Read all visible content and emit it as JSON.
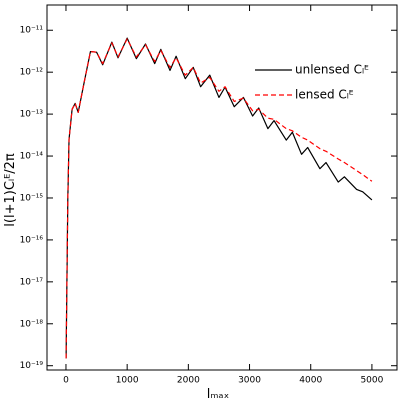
{
  "chart_data": {
    "type": "line",
    "xlabel": "lₘₐₓ",
    "ylabel": "l(l+1)Cₗᴱ/2π",
    "log_y": true,
    "legend": "upper right",
    "x": [
      2,
      30,
      50,
      100,
      150,
      200,
      300,
      400,
      500,
      600,
      750,
      850,
      1000,
      1150,
      1300,
      1450,
      1550,
      1700,
      1800,
      1950,
      2080,
      2200,
      2350,
      2500,
      2600,
      2750,
      2900,
      3050,
      3150,
      3300,
      3400,
      3600,
      3700,
      3850,
      3950,
      4150,
      4250,
      4450,
      4550,
      4750,
      4850,
      5000
    ],
    "series": [
      {
        "name": "unlensed Cₗᴱ",
        "color": "#000000",
        "dash": false,
        "values": [
          1.5e-19,
          9e-16,
          2.5e-14,
          1.3e-13,
          1.8e-13,
          1.1e-13,
          6e-13,
          3.1e-12,
          3e-12,
          1.5e-12,
          5.2e-12,
          2.2e-12,
          6.5e-12,
          2.1e-12,
          4.7e-12,
          1.6e-12,
          3.5e-12,
          1.1e-12,
          2.4e-12,
          7e-13,
          1.3e-12,
          4.5e-13,
          8.5e-13,
          2.5e-13,
          4.4e-13,
          1.5e-13,
          2.5e-13,
          9e-14,
          1.4e-13,
          4.5e-14,
          7e-14,
          2.4e-14,
          3.7e-14,
          1.1e-14,
          1.6e-14,
          5e-15,
          7e-15,
          2.4e-15,
          3.2e-15,
          1.6e-15,
          1.4e-15,
          9e-16
        ]
      },
      {
        "name": "lensed Cₗᴱ",
        "color": "#ff0000",
        "dash": true,
        "values": [
          1.5e-19,
          9e-16,
          2.5e-14,
          1.3e-13,
          1.8e-13,
          1.1e-13,
          6e-13,
          3.1e-12,
          3e-12,
          1.6e-12,
          5e-12,
          2.3e-12,
          6.2e-12,
          2.3e-12,
          4.5e-12,
          1.8e-12,
          3.3e-12,
          1.3e-12,
          2.2e-12,
          8.5e-13,
          1.3e-12,
          5.5e-13,
          7.5e-13,
          3.5e-13,
          4.5e-13,
          2e-13,
          2.4e-13,
          1.2e-13,
          1.3e-13,
          8e-14,
          7.5e-14,
          4.5e-14,
          4e-14,
          2.8e-14,
          2.4e-14,
          1.5e-14,
          1.3e-14,
          8.5e-15,
          7e-15,
          4.5e-15,
          3.6e-15,
          2.5e-15
        ]
      }
    ],
    "xlim": [
      -310,
      5410
    ],
    "ylim": [
      7.9e-20,
      4e-11
    ],
    "xticks": [
      0,
      1000,
      2000,
      3000,
      4000,
      5000
    ],
    "yticks": [
      {
        "value": 1e-19,
        "label": "10⁻¹⁹"
      },
      {
        "value": 1e-18,
        "label": "10⁻¹⁸"
      },
      {
        "value": 1e-17,
        "label": "10⁻¹⁷"
      },
      {
        "value": 1e-16,
        "label": "10⁻¹⁶"
      },
      {
        "value": 1e-15,
        "label": "10⁻¹⁵"
      },
      {
        "value": 1e-14,
        "label": "10⁻¹⁴"
      },
      {
        "value": 1e-13,
        "label": "10⁻¹³"
      },
      {
        "value": 1e-12,
        "label": "10⁻¹²"
      },
      {
        "value": 1e-11,
        "label": "10⁻¹¹"
      }
    ]
  }
}
